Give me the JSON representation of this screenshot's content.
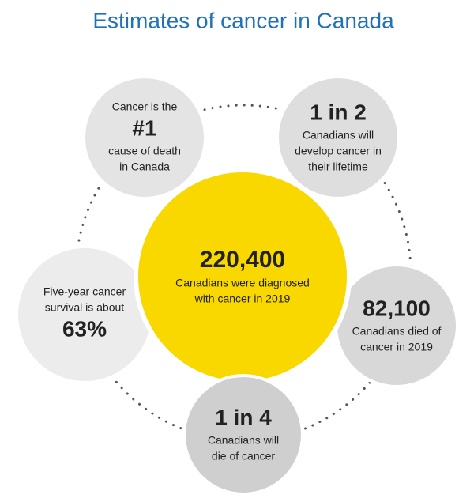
{
  "title": "Estimates of cancer in Canada",
  "center": {
    "before": [],
    "figure": "220,400",
    "after": [
      "Canadians were diagnosed",
      "with cancer in 2019"
    ]
  },
  "circles": [
    {
      "before": [
        "Cancer is the"
      ],
      "figure": "#1",
      "after": [
        "cause of death",
        "in Canada"
      ]
    },
    {
      "before": [],
      "figure": "1 in 2",
      "after": [
        "Canadians will",
        "develop cancer in",
        "their lifetime"
      ]
    },
    {
      "before": [],
      "figure": "82,100",
      "after": [
        "Canadians died of",
        "cancer in 2019"
      ]
    },
    {
      "before": [],
      "figure": "1 in 4",
      "after": [
        "Canadians will",
        "die of cancer"
      ]
    },
    {
      "before": [
        "Five-year cancer",
        "survival is about"
      ],
      "figure": "63%",
      "after": []
    }
  ]
}
